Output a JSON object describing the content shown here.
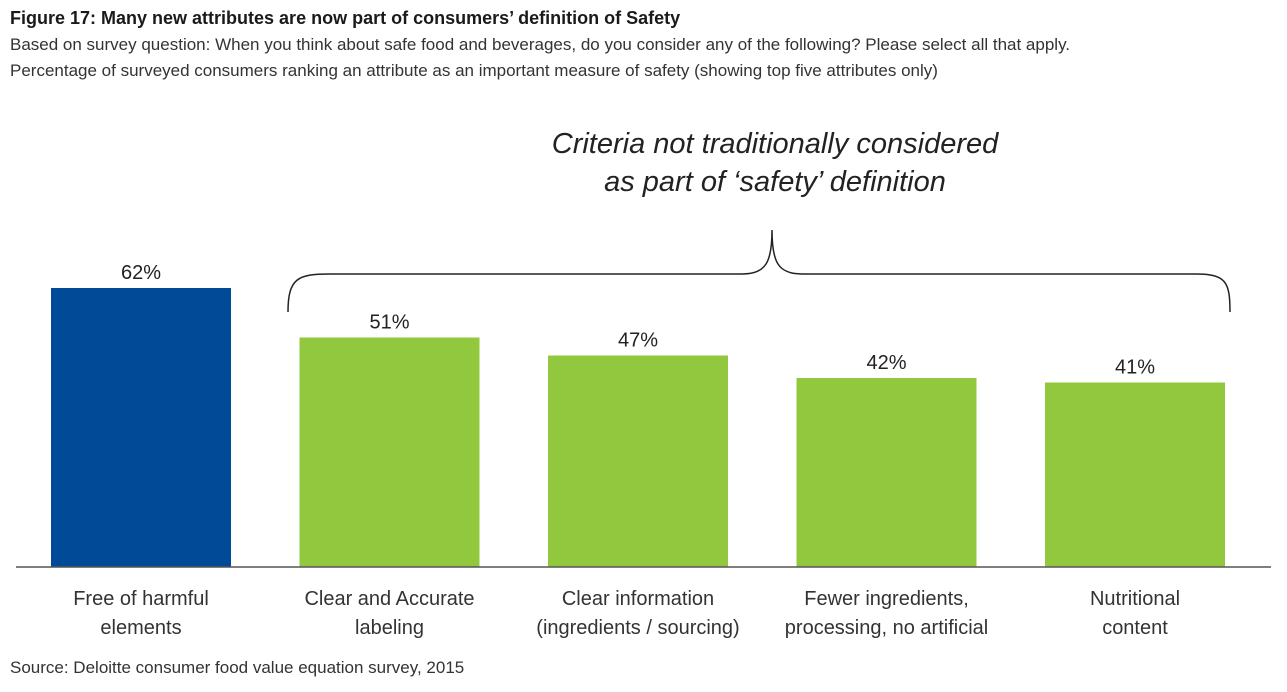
{
  "header": {
    "title": "Figure 17: Many new attributes are now part of consumers’ definition of Safety",
    "subtitle_line1": "Based on survey question: When you think about safe food and beverages, do you consider any of the following? Please select all that apply.",
    "subtitle_line2": "Percentage of surveyed consumers ranking an attribute as an important measure of safety (showing top five attributes only)"
  },
  "annotation": {
    "line1": "Criteria not traditionally considered",
    "line2": "as part of ‘safety’ definition"
  },
  "source": "Source: Deloitte consumer food value equation survey, 2015",
  "colors": {
    "highlight": "#004A98",
    "other": "#92C83E",
    "axis": "#555555"
  },
  "chart_data": {
    "type": "bar",
    "title": "Figure 17: Many new attributes are now part of consumers’ definition of Safety",
    "categories": [
      [
        "Free of harmful",
        "elements"
      ],
      [
        "Clear and Accurate",
        "labeling"
      ],
      [
        "Clear information",
        "(ingredients / sourcing)"
      ],
      [
        "Fewer ingredients,",
        "processing, no artificial"
      ],
      [
        "Nutritional",
        "content"
      ]
    ],
    "values": [
      62,
      51,
      47,
      42,
      41
    ],
    "value_labels": [
      "62%",
      "51%",
      "47%",
      "42%",
      "41%"
    ],
    "highlight_index": 0,
    "ylim": [
      0,
      62
    ],
    "grid": false,
    "xlabel": "",
    "ylabel": ""
  }
}
